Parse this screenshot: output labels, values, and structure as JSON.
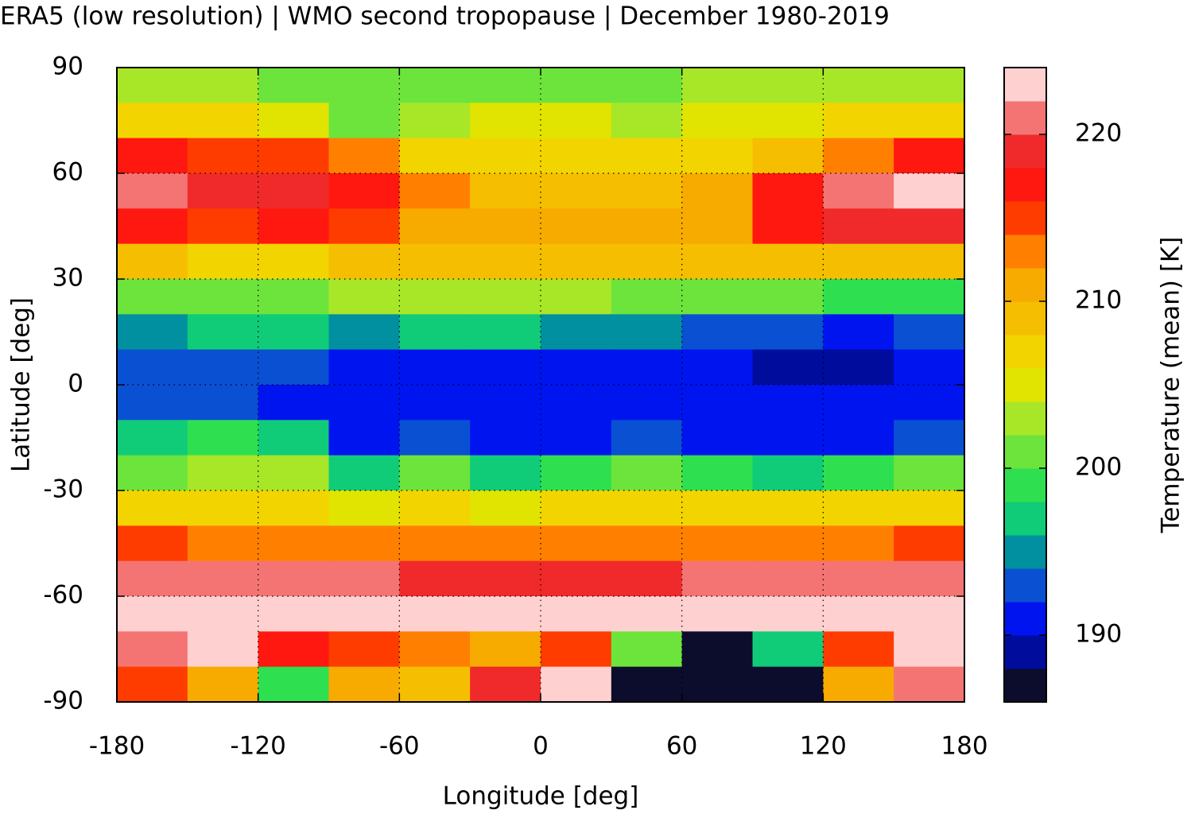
{
  "chart_data": {
    "type": "heatmap",
    "title": "ERA5 (low resolution) | WMO second tropopause | December 1980-2019",
    "xlabel": "Longitude [deg]",
    "ylabel": "Latitude [deg]",
    "xlim": [
      -180,
      180
    ],
    "ylim": [
      -90,
      90
    ],
    "xticks": [
      -180,
      -120,
      -60,
      0,
      60,
      120,
      180
    ],
    "yticks": [
      -90,
      -60,
      -30,
      0,
      30,
      60,
      90
    ],
    "grid": true,
    "xbins": [
      -180,
      -150,
      -120,
      -90,
      -60,
      -30,
      0,
      30,
      60,
      90,
      120,
      150,
      180
    ],
    "ybins": [
      90,
      80,
      70,
      60,
      50,
      40,
      30,
      20,
      10,
      0,
      -10,
      -20,
      -30,
      -40,
      -50,
      -60,
      -70,
      -80,
      -90
    ],
    "values": [
      [
        202,
        202,
        201,
        200,
        200,
        201,
        201,
        201,
        202,
        202,
        202,
        202
      ],
      [
        206,
        206,
        204,
        200,
        202,
        204,
        204,
        203,
        204,
        205,
        206,
        206
      ],
      [
        216,
        214,
        214,
        212,
        206,
        206,
        206,
        206,
        206,
        208,
        212,
        216
      ],
      [
        220,
        219,
        218,
        216,
        212,
        209,
        208,
        208,
        210,
        216,
        220,
        222
      ],
      [
        216,
        215,
        216,
        214,
        210,
        210,
        210,
        210,
        210,
        216,
        218,
        218
      ],
      [
        208,
        206,
        207,
        208,
        208,
        208,
        208,
        208,
        208,
        208,
        208,
        208
      ],
      [
        200,
        200,
        200,
        202,
        202,
        203,
        202,
        200,
        200,
        200,
        198,
        198
      ],
      [
        194,
        196,
        196,
        194,
        196,
        196,
        194,
        194,
        192,
        192,
        190,
        192
      ],
      [
        192,
        192,
        192,
        190,
        190,
        191,
        191,
        190,
        190,
        188,
        188,
        190
      ],
      [
        192,
        192,
        191,
        190,
        190,
        190,
        190,
        190,
        190,
        190,
        190,
        190
      ],
      [
        196,
        198,
        196,
        190,
        192,
        190,
        190,
        192,
        190,
        190,
        190,
        192
      ],
      [
        200,
        202,
        202,
        196,
        200,
        196,
        198,
        200,
        198,
        196,
        198,
        200
      ],
      [
        206,
        206,
        207,
        204,
        206,
        204,
        206,
        206,
        206,
        206,
        206,
        206
      ],
      [
        214,
        212,
        213,
        212,
        212,
        212,
        212,
        212,
        212,
        212,
        212,
        214
      ],
      [
        220,
        220,
        220,
        220,
        218,
        218,
        218,
        218,
        220,
        220,
        220,
        220
      ],
      [
        224,
        224,
        224,
        224,
        224,
        224,
        224,
        222,
        224,
        224,
        224,
        224
      ],
      [
        220,
        222,
        216,
        214,
        212,
        210,
        214,
        200,
        186,
        196,
        214,
        222
      ],
      [
        214,
        210,
        198,
        210,
        208,
        218,
        224,
        186,
        186,
        186,
        210,
        220
      ]
    ],
    "colorbar": {
      "label": "Temperature (mean) [K]",
      "levels": [
        186,
        188,
        190,
        192,
        194,
        196,
        198,
        200,
        202,
        204,
        206,
        208,
        210,
        212,
        214,
        216,
        218,
        220,
        222,
        224
      ],
      "colors": [
        "#0c0c2c",
        "#000c9c",
        "#0014f0",
        "#0a50d2",
        "#0090a0",
        "#10cc78",
        "#2ee050",
        "#6ce43c",
        "#a8e628",
        "#e0e400",
        "#f2d400",
        "#f5be00",
        "#f7aa00",
        "#ff8000",
        "#ff3c00",
        "#ff1810",
        "#f02a2a",
        "#f47474",
        "#ffd0d0"
      ],
      "ticks": [
        190,
        200,
        210,
        220
      ]
    }
  }
}
